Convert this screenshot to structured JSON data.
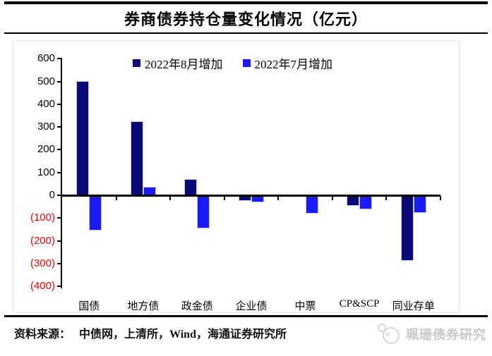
{
  "title": "券商债券持仓量变化情况（亿元）",
  "chart_data": {
    "type": "bar",
    "title": "券商债券持仓量变化情况（亿元）",
    "unit": "亿元",
    "categories": [
      "国债",
      "地方债",
      "政金债",
      "企业债",
      "中票",
      "CP&SCP",
      "同业存单"
    ],
    "series": [
      {
        "name": "2022年8月增加",
        "color": "#0a0a78",
        "values": [
          503,
          325,
          72,
          -25,
          -5,
          -46,
          -288
        ]
      },
      {
        "name": "2022年7月增加",
        "color": "#1a1aff",
        "values": [
          -155,
          38,
          -145,
          -30,
          -82,
          -62,
          -77
        ]
      }
    ],
    "ylim": [
      -400,
      600
    ],
    "ytick_step": 100,
    "grid": false,
    "legend_position": "top-center",
    "negative_tick_style": "red-parentheses"
  },
  "y_ticks": [
    {
      "label": "600",
      "value": 600,
      "color": "#000000"
    },
    {
      "label": "500",
      "value": 500,
      "color": "#000000"
    },
    {
      "label": "400",
      "value": 400,
      "color": "#000000"
    },
    {
      "label": "300",
      "value": 300,
      "color": "#000000"
    },
    {
      "label": "200",
      "value": 200,
      "color": "#000000"
    },
    {
      "label": "100",
      "value": 100,
      "color": "#000000"
    },
    {
      "label": "0",
      "value": 0,
      "color": "#000000"
    },
    {
      "label": "(100)",
      "value": -100,
      "color": "#ff0000"
    },
    {
      "label": "(200)",
      "value": -200,
      "color": "#ff0000"
    },
    {
      "label": "(300)",
      "value": -300,
      "color": "#ff0000"
    },
    {
      "label": "(400)",
      "value": -400,
      "color": "#ff0000"
    }
  ],
  "footer": {
    "source_label": "资料来源：",
    "source_text": "中债网，上清所，Wind，海通证券研究所",
    "watermark_text": "珮珊债券研究"
  },
  "colors": {
    "august_bar": "#0a0a78",
    "july_bar": "#1a1aff",
    "negative_axis_label": "#ff0000",
    "watermark_gray": "#c8c8c8",
    "frame_border": "#e6e6e6"
  }
}
